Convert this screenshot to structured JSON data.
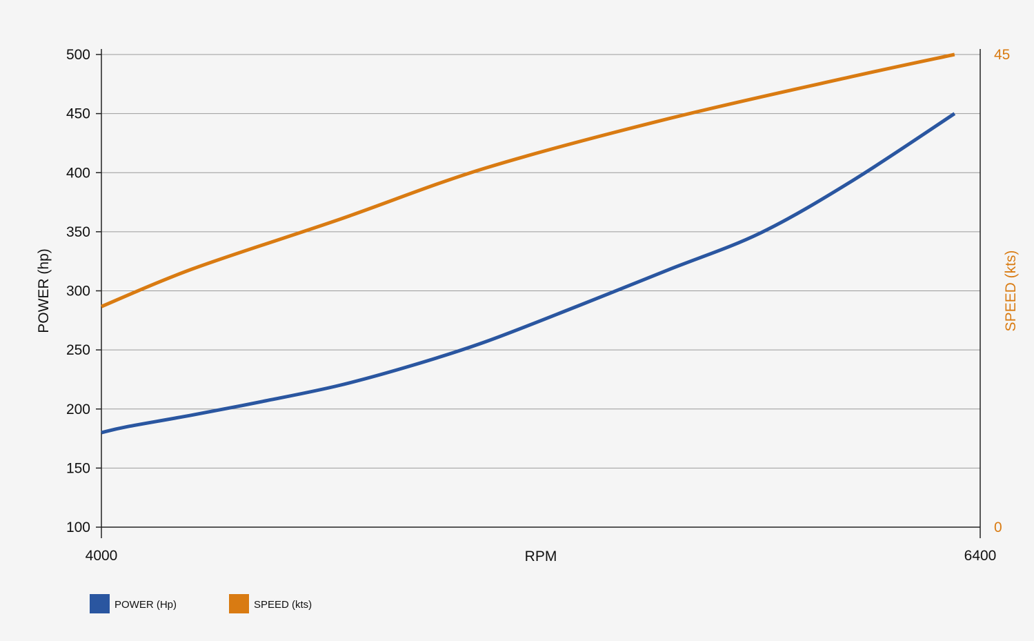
{
  "chart_data": {
    "type": "line",
    "x_axis": {
      "label": "RPM",
      "range": [
        4000,
        6400
      ],
      "ticks": [
        4000,
        6400
      ]
    },
    "y_axis_left": {
      "label": "POWER (hp)",
      "range": [
        100,
        500
      ],
      "ticks": [
        100,
        150,
        200,
        250,
        300,
        350,
        400,
        450,
        500
      ]
    },
    "y_axis_right": {
      "label": "SPEED (kts)",
      "range": [
        0,
        45
      ],
      "ticks": [
        0,
        45
      ]
    },
    "grid": "horizontal",
    "legend_position": "bottom-left",
    "series": [
      {
        "name": "POWER (Hp)",
        "axis": "left",
        "color": "#2a56a0",
        "x": [
          4000,
          4070,
          4250,
          4450,
          4650,
          4850,
          5050,
          5300,
          5550,
          5800,
          6050,
          6330
        ],
        "y": [
          180,
          185,
          195,
          207,
          220,
          237,
          257,
          287,
          318,
          349,
          393,
          450
        ]
      },
      {
        "name": "SPEED (kts)",
        "axis": "right",
        "color": "#d97b12",
        "x": [
          4000,
          4250,
          4650,
          5050,
          5550,
          6050,
          6330
        ],
        "y": [
          21,
          24.6,
          29.3,
          34.2,
          38.9,
          42.9,
          45
        ]
      }
    ]
  }
}
